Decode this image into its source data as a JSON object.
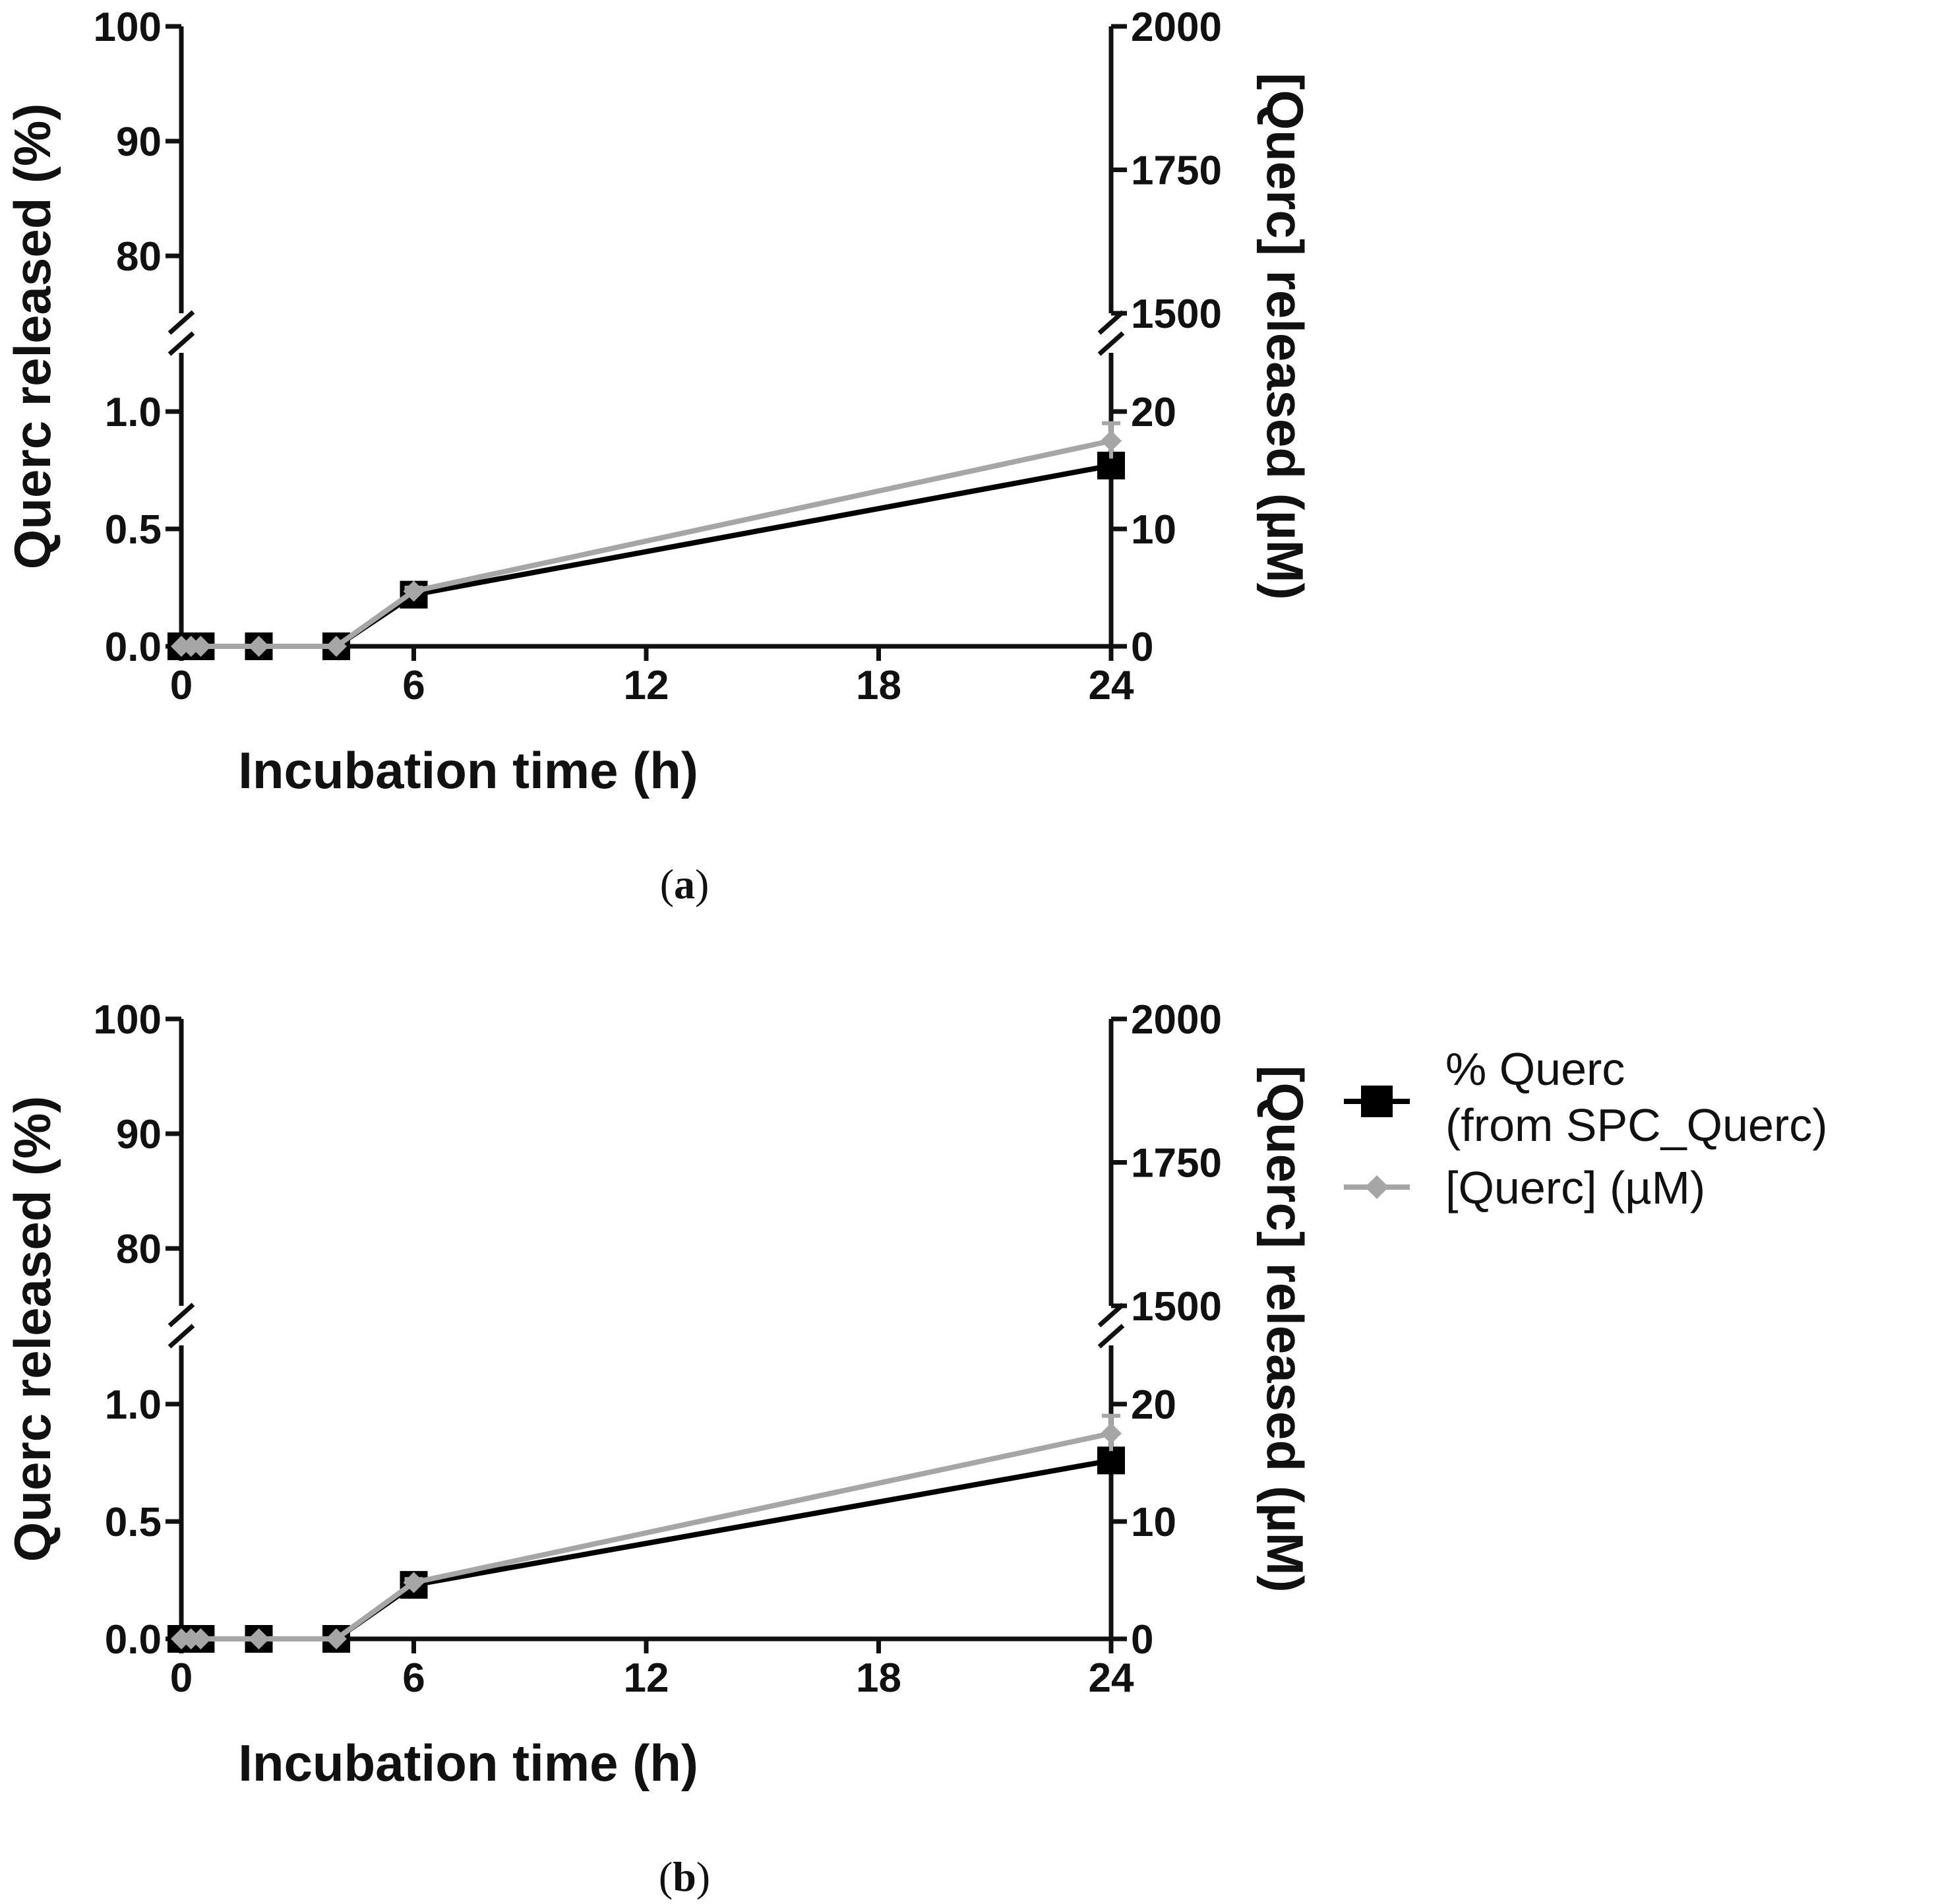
{
  "colors": {
    "series_percent": "#000000",
    "series_conc": "#a6a6a6",
    "axis": "#111111"
  },
  "legend": {
    "percent_line1": "% Querc",
    "percent_line2": "(from SPC_Querc)",
    "conc_label": "[Querc] (µM)",
    "percent_marker": "square-marker-icon",
    "conc_marker": "diamond-marker-icon"
  },
  "chart_data": [
    {
      "type": "line",
      "panel": "a",
      "caption_open": "(",
      "caption_letter": "a",
      "caption_close": ")",
      "xlabel": "Incubation time (h)",
      "ylabel_left": "Querc released (%)",
      "ylabel_right": "[Querc] released (µM)",
      "x_ticks": [
        "0",
        "6",
        "12",
        "18",
        "24"
      ],
      "xlim": [
        0,
        24
      ],
      "left_axis": {
        "broken": true,
        "lower_range": [
          0,
          1.25
        ],
        "upper_range": [
          75,
          100
        ],
        "lower_ticks": [
          "0.0",
          "0.5",
          "1.0"
        ],
        "upper_ticks": [
          "80",
          "90",
          "100"
        ]
      },
      "right_axis": {
        "broken": true,
        "lower_range": [
          0,
          25
        ],
        "upper_range": [
          1500,
          2000
        ],
        "lower_ticks": [
          "0",
          "10",
          "20"
        ],
        "upper_ticks": [
          "1500",
          "1750",
          "2000"
        ]
      },
      "series": [
        {
          "name": "% Querc (from SPC_Querc)",
          "axis": "left",
          "marker": "square",
          "x": [
            0,
            0.25,
            0.5,
            2,
            4,
            6,
            24
          ],
          "y": [
            0,
            0,
            0,
            0,
            0,
            0.22,
            0.77
          ],
          "error": [
            0,
            0,
            0,
            0,
            0,
            0.02,
            0.05
          ]
        },
        {
          "name": "[Querc] (µM)",
          "axis": "right",
          "marker": "diamond",
          "x": [
            0,
            0.25,
            0.5,
            2,
            4,
            6,
            24
          ],
          "y": [
            0,
            0,
            0,
            0,
            0,
            4.7,
            17.5
          ],
          "error": [
            0,
            0,
            0,
            0,
            0,
            0.3,
            1.5
          ]
        }
      ]
    },
    {
      "type": "line",
      "panel": "b",
      "caption_open": "(",
      "caption_letter": "b",
      "caption_close": ")",
      "xlabel": "Incubation time (h)",
      "ylabel_left": "Querc released (%)",
      "ylabel_right": "[Querc] released (µM)",
      "x_ticks": [
        "0",
        "6",
        "12",
        "18",
        "24"
      ],
      "xlim": [
        0,
        24
      ],
      "left_axis": {
        "broken": true,
        "lower_range": [
          0,
          1.25
        ],
        "upper_range": [
          75,
          100
        ],
        "lower_ticks": [
          "0.0",
          "0.5",
          "1.0"
        ],
        "upper_ticks": [
          "80",
          "90",
          "100"
        ]
      },
      "right_axis": {
        "broken": true,
        "lower_range": [
          0,
          25
        ],
        "upper_range": [
          1500,
          2000
        ],
        "lower_ticks": [
          "0",
          "10",
          "20"
        ],
        "upper_ticks": [
          "1500",
          "1750",
          "2000"
        ]
      },
      "series": [
        {
          "name": "% Querc (from SPC_Querc)",
          "axis": "left",
          "marker": "square",
          "x": [
            0,
            0.25,
            0.5,
            2,
            4,
            6,
            24
          ],
          "y": [
            0,
            0,
            0,
            0,
            0,
            0.23,
            0.76
          ],
          "error": [
            0,
            0,
            0,
            0,
            0,
            0.02,
            0.05
          ]
        },
        {
          "name": "[Querc] (µM)",
          "axis": "right",
          "marker": "diamond",
          "x": [
            0,
            0.25,
            0.5,
            2,
            4,
            6,
            24
          ],
          "y": [
            0,
            0,
            0,
            0,
            0,
            4.8,
            17.5
          ],
          "error": [
            0,
            0,
            0,
            0,
            0,
            0.3,
            1.5
          ]
        }
      ]
    }
  ]
}
